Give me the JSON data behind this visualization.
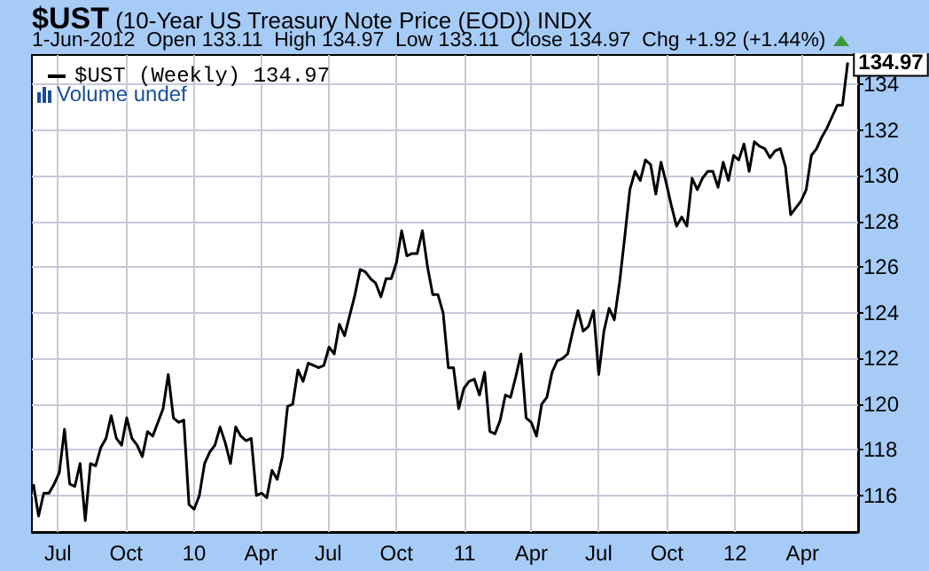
{
  "chart_data": {
    "type": "line",
    "title": "$UST (10-Year US Treasury Note Price (EOD)) INDX",
    "subtitle": "1-Jun-2012  Open 133.11  High 134.97  Low 133.11  Close 134.97  Chg +1.92 (+1.44%)",
    "annotations": [
      "Volume undef",
      {
        "text": "134.97",
        "x": "2012-06-01",
        "y": 134.97
      }
    ],
    "x": [
      "2009-05-29",
      "2009-06-05",
      "2009-06-12",
      "2009-06-19",
      "2009-06-26",
      "2009-07-03",
      "2009-07-10",
      "2009-07-17",
      "2009-07-24",
      "2009-07-31",
      "2009-08-07",
      "2009-08-14",
      "2009-08-21",
      "2009-08-28",
      "2009-09-04",
      "2009-09-11",
      "2009-09-18",
      "2009-09-25",
      "2009-10-02",
      "2009-10-09",
      "2009-10-16",
      "2009-10-23",
      "2009-10-30",
      "2009-11-06",
      "2009-11-13",
      "2009-11-20",
      "2009-11-27",
      "2009-12-04",
      "2009-12-11",
      "2009-12-18",
      "2009-12-25",
      "2010-01-01",
      "2010-01-08",
      "2010-01-15",
      "2010-01-22",
      "2010-01-29",
      "2010-02-05",
      "2010-02-12",
      "2010-02-19",
      "2010-02-26",
      "2010-03-05",
      "2010-03-12",
      "2010-03-19",
      "2010-03-26",
      "2010-04-02",
      "2010-04-09",
      "2010-04-16",
      "2010-04-23",
      "2010-04-30",
      "2010-05-07",
      "2010-05-14",
      "2010-05-21",
      "2010-05-28",
      "2010-06-04",
      "2010-06-11",
      "2010-06-18",
      "2010-06-25",
      "2010-07-02",
      "2010-07-09",
      "2010-07-16",
      "2010-07-23",
      "2010-07-30",
      "2010-08-06",
      "2010-08-13",
      "2010-08-20",
      "2010-08-27",
      "2010-09-03",
      "2010-09-10",
      "2010-09-17",
      "2010-09-24",
      "2010-10-01",
      "2010-10-08",
      "2010-10-15",
      "2010-10-22",
      "2010-10-29",
      "2010-11-05",
      "2010-11-12",
      "2010-11-19",
      "2010-11-26",
      "2010-12-03",
      "2010-12-10",
      "2010-12-17",
      "2010-12-24",
      "2010-12-31",
      "2011-01-07",
      "2011-01-14",
      "2011-01-21",
      "2011-01-28",
      "2011-02-04",
      "2011-02-11",
      "2011-02-18",
      "2011-02-25",
      "2011-03-04",
      "2011-03-11",
      "2011-03-18",
      "2011-03-25",
      "2011-04-01",
      "2011-04-08",
      "2011-04-15",
      "2011-04-22",
      "2011-04-29",
      "2011-05-06",
      "2011-05-13",
      "2011-05-20",
      "2011-05-27",
      "2011-06-03",
      "2011-06-10",
      "2011-06-17",
      "2011-06-24",
      "2011-07-01",
      "2011-07-08",
      "2011-07-15",
      "2011-07-22",
      "2011-07-29",
      "2011-08-05",
      "2011-08-12",
      "2011-08-19",
      "2011-08-26",
      "2011-09-02",
      "2011-09-09",
      "2011-09-16",
      "2011-09-23",
      "2011-09-30",
      "2011-10-07",
      "2011-10-14",
      "2011-10-21",
      "2011-10-28",
      "2011-11-04",
      "2011-11-11",
      "2011-11-18",
      "2011-11-25",
      "2011-12-02",
      "2011-12-09",
      "2011-12-16",
      "2011-12-23",
      "2011-12-30",
      "2012-01-06",
      "2012-01-13",
      "2012-01-20",
      "2012-01-27",
      "2012-02-03",
      "2012-02-10",
      "2012-02-17",
      "2012-02-24",
      "2012-03-02",
      "2012-03-09",
      "2012-03-16",
      "2012-03-23",
      "2012-03-30",
      "2012-04-06",
      "2012-04-13",
      "2012-04-20",
      "2012-04-27",
      "2012-05-04",
      "2012-05-11",
      "2012-05-18",
      "2012-05-25",
      "2012-06-01"
    ],
    "series": [
      {
        "name": "$UST (Weekly) 134.97",
        "color": "#000000",
        "values": [
          116.5,
          115.1,
          116.1,
          116.1,
          116.5,
          117.0,
          118.9,
          116.5,
          116.4,
          117.4,
          114.9,
          117.4,
          117.3,
          118.1,
          118.5,
          119.5,
          118.5,
          118.2,
          119.4,
          118.5,
          118.2,
          117.7,
          118.8,
          118.6,
          119.2,
          119.8,
          121.3,
          119.4,
          119.2,
          119.3,
          115.6,
          115.4,
          116.0,
          117.4,
          117.9,
          118.2,
          119.0,
          118.3,
          117.4,
          119.0,
          118.6,
          118.4,
          118.5,
          116.0,
          116.1,
          115.9,
          117.1,
          116.7,
          117.7,
          119.9,
          120.0,
          121.5,
          121.0,
          121.8,
          121.7,
          121.6,
          121.7,
          122.5,
          122.2,
          123.5,
          123.0,
          123.9,
          124.8,
          125.9,
          125.8,
          125.5,
          125.3,
          124.7,
          125.5,
          125.5,
          126.2,
          127.6,
          126.5,
          126.6,
          126.6,
          127.6,
          126.0,
          124.8,
          124.8,
          124.0,
          121.6,
          121.6,
          119.8,
          120.7,
          121.0,
          121.1,
          120.4,
          121.4,
          118.8,
          118.7,
          119.3,
          120.4,
          120.3,
          121.2,
          122.2,
          119.4,
          119.2,
          118.6,
          120.0,
          120.3,
          121.4,
          121.9,
          122.0,
          122.2,
          123.2,
          124.1,
          123.2,
          123.4,
          124.1,
          121.3,
          123.2,
          124.2,
          123.7,
          125.3,
          127.3,
          129.4,
          130.2,
          129.8,
          130.7,
          130.5,
          129.2,
          130.6,
          129.7,
          128.7,
          127.8,
          128.2,
          127.8,
          129.9,
          129.4,
          129.9,
          130.2,
          130.2,
          129.5,
          130.6,
          129.8,
          130.9,
          130.7,
          131.4,
          130.2,
          131.5,
          131.3,
          131.2,
          130.8,
          131.1,
          131.2,
          130.4,
          128.3,
          128.6,
          128.9,
          129.4,
          130.9,
          131.2,
          131.7,
          132.1,
          132.6,
          133.1,
          133.1,
          134.97
        ]
      }
    ],
    "xlim": [
      "2009-05-27",
      "2012-06-15"
    ],
    "xticks": [
      {
        "value": "2009-07-01",
        "label": "Jul"
      },
      {
        "value": "2009-10-01",
        "label": "Oct"
      },
      {
        "value": "2010-01-01",
        "label": "10"
      },
      {
        "value": "2010-04-01",
        "label": "Apr"
      },
      {
        "value": "2010-07-01",
        "label": "Jul"
      },
      {
        "value": "2010-10-01",
        "label": "Oct"
      },
      {
        "value": "2011-01-01",
        "label": "11"
      },
      {
        "value": "2011-04-01",
        "label": "Apr"
      },
      {
        "value": "2011-07-01",
        "label": "Jul"
      },
      {
        "value": "2011-10-01",
        "label": "Oct"
      },
      {
        "value": "2012-01-01",
        "label": "12"
      },
      {
        "value": "2012-04-01",
        "label": "Apr"
      }
    ],
    "ylim": [
      114.4,
      135.3
    ],
    "yticks": [
      116,
      118,
      120,
      122,
      124,
      126,
      128,
      130,
      132,
      134
    ],
    "grid": true,
    "legend": "top left",
    "marker": "none",
    "line_style": "solid"
  }
}
